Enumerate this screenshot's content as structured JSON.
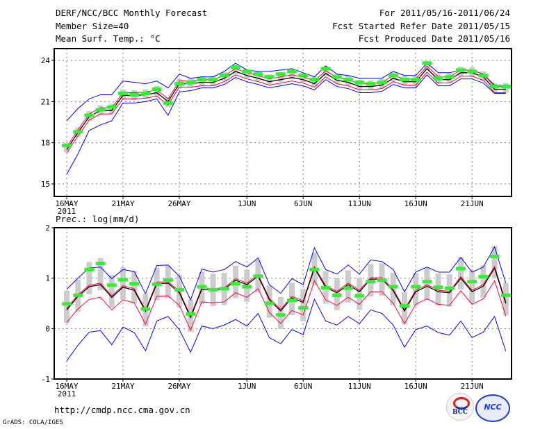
{
  "header": {
    "title": "DERF/NCC/BCC Monthly Forecast",
    "member_size": "Member Size=40",
    "variable": "Mean Surf. Temp.: °C",
    "period": "For 2011/05/16-2011/06/24",
    "started": "Fcst Started Refer Date 2011/05/15",
    "produced": "Fcst Produced Date 2011/05/16"
  },
  "footer": {
    "url": "http://cmdp.ncc.cma.gov.cn",
    "credit": "GrADS: COLA/IGES",
    "logo_bcc": "BCC",
    "logo_ncc": "NCC"
  },
  "colors": {
    "ensemble_range": "#0000ff",
    "quartiles": "#ff0033",
    "mean": "#000000",
    "observed": "#33ee33",
    "box": "#cccccc"
  },
  "chart_data": [
    {
      "type": "line",
      "title": "Mean Surf. Temp.: °C",
      "ylim": [
        14.09,
        24.86
      ],
      "yticks": [
        15,
        18,
        21,
        24
      ],
      "xtick_labels": [
        "16MAY",
        "21MAY",
        "26MAY",
        "1JUN",
        "6JUN",
        "11JUN",
        "16JUN",
        "21JUN"
      ],
      "xtick_index": [
        0,
        5,
        10,
        16,
        21,
        26,
        31,
        36
      ],
      "year_label": "2011",
      "days": 40,
      "box_halfwidth": 0.35,
      "red_offset_up": 0.2,
      "red_offset_down": 0.25,
      "series": [
        {
          "name": "mean",
          "values": [
            17.5,
            18.75,
            19.9,
            20.35,
            20.35,
            21.45,
            21.45,
            21.5,
            21.65,
            21.0,
            22.3,
            22.3,
            22.4,
            22.4,
            22.7,
            23.2,
            22.9,
            22.7,
            22.45,
            22.6,
            22.75,
            22.6,
            22.3,
            23.05,
            22.55,
            22.4,
            22.1,
            22.1,
            22.2,
            22.7,
            22.45,
            22.45,
            23.4,
            22.6,
            22.6,
            23.1,
            23.1,
            22.8,
            21.9,
            21.9
          ]
        },
        {
          "name": "max",
          "values": [
            19.6,
            20.5,
            21.2,
            21.5,
            21.5,
            22.5,
            22.4,
            22.3,
            22.5,
            22.0,
            23.0,
            22.7,
            22.8,
            22.8,
            23.2,
            23.8,
            23.3,
            23.2,
            23.2,
            23.3,
            23.4,
            23.1,
            22.8,
            23.6,
            23.0,
            22.9,
            22.7,
            22.7,
            22.7,
            23.2,
            22.9,
            22.9,
            23.8,
            23.1,
            23.1,
            23.3,
            23.3,
            23.0,
            22.2,
            22.2
          ]
        },
        {
          "name": "min",
          "values": [
            15.7,
            17.2,
            18.9,
            19.3,
            19.6,
            20.9,
            20.9,
            21.0,
            21.2,
            20.0,
            21.7,
            21.8,
            22.0,
            22.0,
            22.25,
            22.75,
            22.45,
            22.25,
            22.0,
            22.15,
            22.3,
            22.15,
            21.85,
            22.6,
            22.1,
            21.95,
            21.65,
            21.65,
            21.75,
            22.25,
            22.0,
            22.0,
            22.95,
            22.15,
            22.15,
            22.65,
            22.65,
            22.35,
            21.6,
            21.6
          ]
        },
        {
          "name": "observed",
          "values": [
            17.8,
            18.8,
            20.0,
            20.4,
            20.6,
            21.6,
            21.5,
            21.6,
            21.9,
            20.9,
            22.3,
            22.4,
            22.6,
            22.6,
            22.9,
            23.5,
            23.2,
            23.0,
            22.8,
            23.0,
            23.2,
            22.9,
            22.6,
            23.4,
            22.8,
            22.6,
            22.4,
            22.3,
            22.4,
            22.9,
            22.6,
            22.6,
            23.8,
            22.7,
            22.8,
            23.3,
            23.2,
            22.9,
            22.1,
            22.1
          ]
        }
      ]
    },
    {
      "type": "line",
      "title": "Prec.: log(mm/d)",
      "ylim": [
        -1,
        2
      ],
      "yticks": [
        -1,
        0,
        1,
        2
      ],
      "xtick_labels": [
        "16MAY",
        "21MAY",
        "26MAY",
        "1JUN",
        "6JUN",
        "11JUN",
        "16JUN",
        "21JUN"
      ],
      "xtick_index": [
        0,
        5,
        10,
        16,
        21,
        26,
        31,
        36
      ],
      "year_label": "2011",
      "days": 40,
      "box_halfwidth": 0.32,
      "red_offset_up": 0.03,
      "red_offset_down": 0.25,
      "series": [
        {
          "name": "mean",
          "values": [
            0.37,
            0.64,
            0.83,
            0.87,
            0.62,
            0.82,
            0.76,
            0.34,
            0.89,
            0.9,
            0.71,
            0.22,
            0.78,
            0.76,
            0.78,
            0.96,
            0.87,
            1.04,
            0.57,
            0.35,
            0.61,
            0.52,
            1.2,
            0.82,
            0.71,
            0.87,
            0.73,
            0.98,
            0.98,
            0.75,
            0.35,
            0.73,
            0.84,
            0.73,
            0.71,
            1.0,
            0.73,
            0.84,
            1.2,
            0.5
          ]
        },
        {
          "name": "max",
          "values": [
            0.78,
            1.0,
            1.2,
            1.22,
            0.99,
            1.17,
            1.13,
            0.69,
            1.25,
            1.26,
            1.04,
            0.57,
            1.18,
            1.12,
            1.17,
            1.33,
            1.22,
            1.4,
            0.87,
            0.7,
            0.99,
            0.87,
            1.6,
            1.17,
            1.08,
            1.26,
            1.08,
            1.36,
            1.33,
            1.17,
            0.73,
            1.12,
            1.22,
            1.12,
            1.12,
            1.41,
            1.12,
            1.22,
            1.62,
            0.9
          ]
        },
        {
          "name": "min",
          "values": [
            -0.64,
            -0.33,
            -0.07,
            -0.04,
            -0.32,
            0.03,
            -0.08,
            -0.44,
            0.15,
            0.24,
            -0.02,
            -0.47,
            0.05,
            0.0,
            0.07,
            0.18,
            0.05,
            0.3,
            -0.18,
            -0.3,
            -0.02,
            -0.12,
            0.58,
            0.15,
            0.07,
            0.24,
            0.1,
            0.37,
            0.3,
            0.07,
            -0.37,
            -0.02,
            0.05,
            -0.08,
            -0.13,
            0.15,
            -0.18,
            -0.07,
            0.24,
            -0.45
          ]
        },
        {
          "name": "observed",
          "values": [
            0.49,
            0.66,
            1.17,
            1.29,
            0.86,
            0.97,
            0.89,
            0.39,
            0.88,
            0.96,
            0.77,
            0.29,
            0.83,
            0.77,
            0.79,
            0.89,
            0.83,
            1.04,
            0.5,
            0.27,
            0.56,
            0.41,
            1.17,
            0.81,
            0.66,
            0.8,
            0.65,
            0.93,
            0.96,
            0.83,
            0.45,
            0.83,
            0.93,
            0.82,
            0.8,
            1.19,
            0.93,
            1.03,
            1.43,
            0.66
          ]
        }
      ]
    }
  ]
}
